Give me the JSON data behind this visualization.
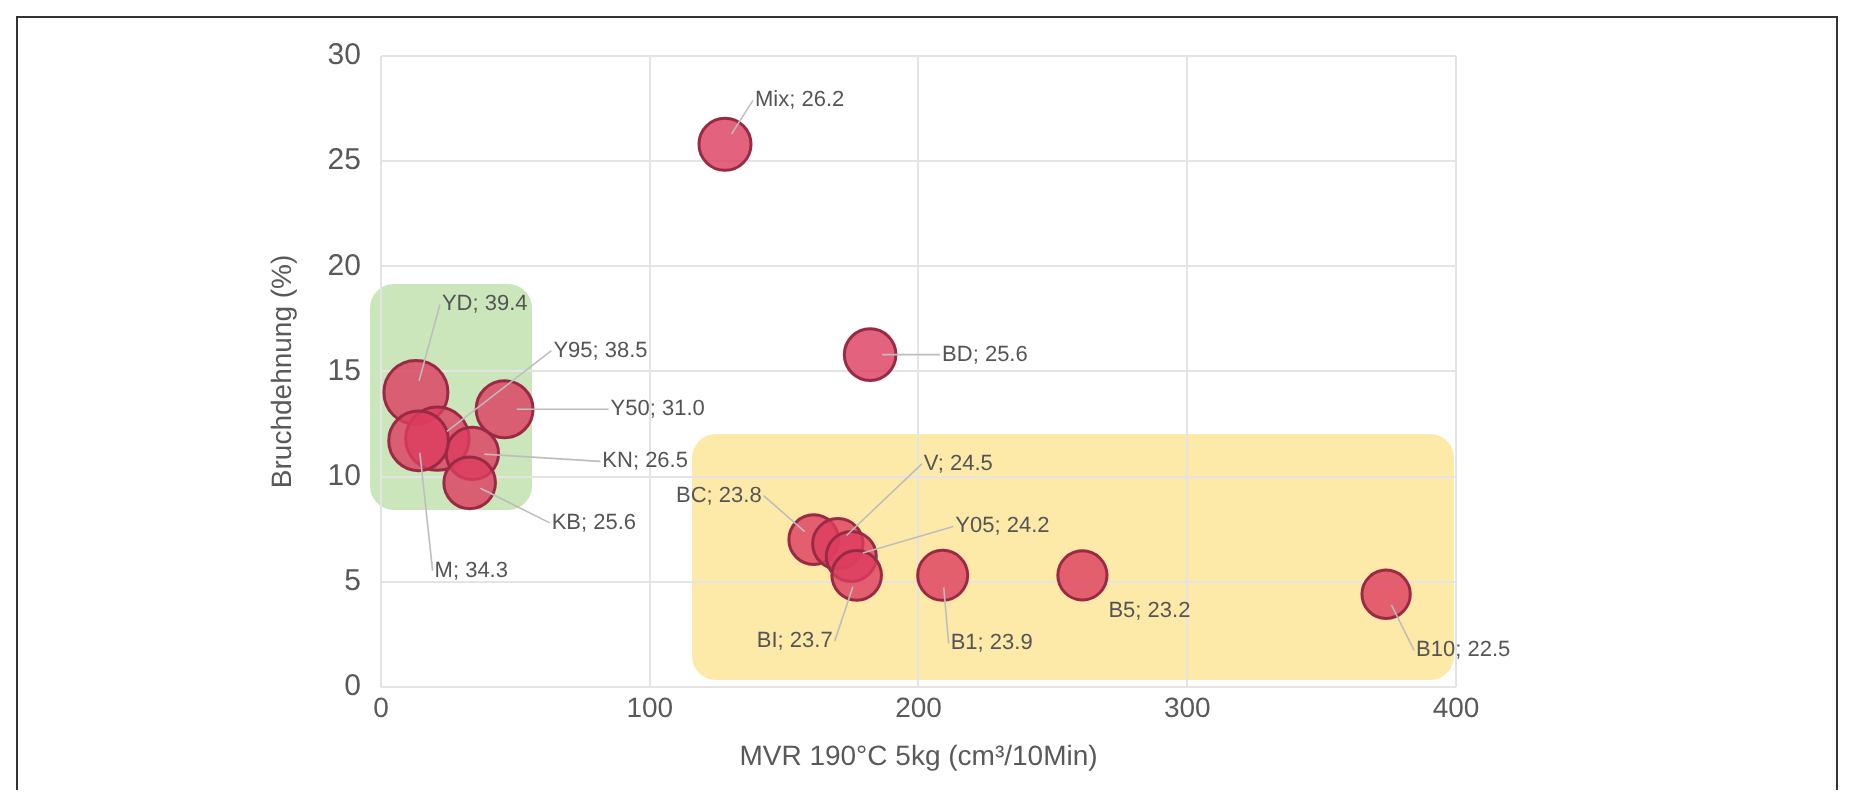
{
  "chart_data": {
    "type": "bubble",
    "xlabel": "MVR 190°C 5kg (cm³/10Min)",
    "ylabel": "Bruchdehnung (%)",
    "xlim": [
      0,
      400
    ],
    "xticks": [
      0,
      100,
      200,
      300,
      400
    ],
    "ylim": [
      0,
      30
    ],
    "yticks": [
      0,
      5,
      10,
      15,
      20,
      25,
      30
    ],
    "grid": true,
    "legend": false,
    "series": [
      {
        "color": "#dc3c5f",
        "x": [
          128,
          182,
          13,
          21,
          46,
          34,
          33,
          14,
          161,
          170,
          175,
          177,
          209,
          261,
          374
        ],
        "values": [
          25.8,
          15.8,
          14.0,
          11.8,
          13.2,
          11.1,
          9.7,
          11.7,
          7.0,
          6.8,
          6.2,
          5.3,
          5.3,
          5.3,
          4.4
        ],
        "sizes": [
          0.66,
          0.65,
          1,
          0.98,
          0.79,
          0.67,
          0.65,
          0.87,
          0.6,
          0.62,
          0.61,
          0.6,
          0.61,
          0.59,
          0.57
        ]
      }
    ],
    "annotations": [
      {
        "text": "Mix; 26.2",
        "x": 128,
        "y": 25.8
      },
      {
        "text": "BD; 25.6",
        "x": 182,
        "y": 15.8
      },
      {
        "text": "YD; 39.4",
        "x": 13,
        "y": 14.0
      },
      {
        "text": "Y95; 38.5",
        "x": 21,
        "y": 11.8
      },
      {
        "text": "Y50; 31.0",
        "x": 46,
        "y": 13.2
      },
      {
        "text": "KN; 26.5",
        "x": 34,
        "y": 11.1
      },
      {
        "text": "KB; 25.6",
        "x": 33,
        "y": 9.7
      },
      {
        "text": "M; 34.3",
        "x": 14,
        "y": 11.7
      },
      {
        "text": "BC; 23.8",
        "x": 161,
        "y": 7.0
      },
      {
        "text": "V; 24.5",
        "x": 170,
        "y": 6.8
      },
      {
        "text": "Y05; 24.2",
        "x": 175,
        "y": 6.2
      },
      {
        "text": "BI; 23.7",
        "x": 177,
        "y": 5.3
      },
      {
        "text": "B1; 23.9",
        "x": 209,
        "y": 5.3
      },
      {
        "text": "B5; 23.2",
        "x": 261,
        "y": 5.3
      },
      {
        "text": "B10; 22.5",
        "x": 374,
        "y": 4.4
      }
    ]
  }
}
